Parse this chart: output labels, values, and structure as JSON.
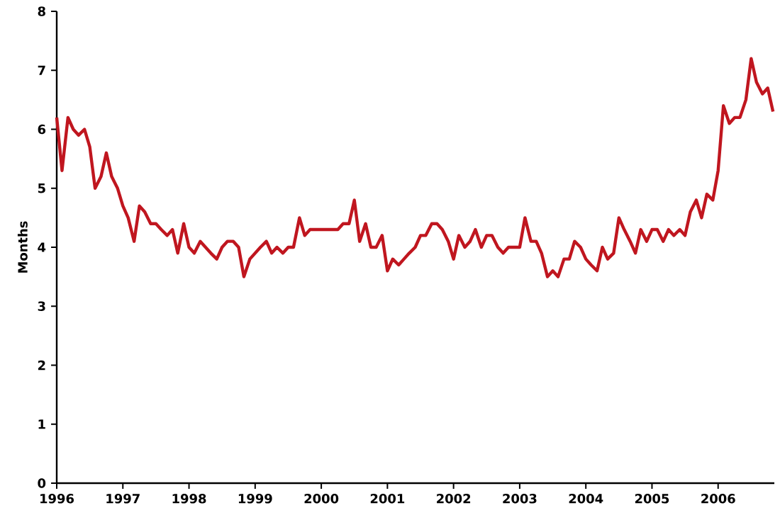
{
  "chart_data": {
    "type": "line",
    "ylabel": "Months",
    "x": [
      1996.0,
      1996.08,
      1996.17,
      1996.25,
      1996.33,
      1996.42,
      1996.5,
      1996.58,
      1996.67,
      1996.75,
      1996.83,
      1996.92,
      1997.0,
      1997.08,
      1997.17,
      1997.25,
      1997.33,
      1997.42,
      1997.5,
      1997.58,
      1997.67,
      1997.75,
      1997.83,
      1997.92,
      1998.0,
      1998.08,
      1998.17,
      1998.25,
      1998.33,
      1998.42,
      1998.5,
      1998.58,
      1998.67,
      1998.75,
      1998.83,
      1998.92,
      1999.0,
      1999.08,
      1999.17,
      1999.25,
      1999.33,
      1999.42,
      1999.5,
      1999.58,
      1999.67,
      1999.75,
      1999.83,
      1999.92,
      2000.0,
      2000.08,
      2000.17,
      2000.25,
      2000.33,
      2000.42,
      2000.5,
      2000.58,
      2000.67,
      2000.75,
      2000.83,
      2000.92,
      2001.0,
      2001.08,
      2001.17,
      2001.25,
      2001.33,
      2001.42,
      2001.5,
      2001.58,
      2001.67,
      2001.75,
      2001.83,
      2001.92,
      2002.0,
      2002.08,
      2002.17,
      2002.25,
      2002.33,
      2002.42,
      2002.5,
      2002.58,
      2002.67,
      2002.75,
      2002.83,
      2002.92,
      2003.0,
      2003.08,
      2003.17,
      2003.25,
      2003.33,
      2003.42,
      2003.5,
      2003.58,
      2003.67,
      2003.75,
      2003.83,
      2003.92,
      2004.0,
      2004.08,
      2004.17,
      2004.25,
      2004.33,
      2004.42,
      2004.5,
      2004.58,
      2004.67,
      2004.75,
      2004.83,
      2004.92,
      2005.0,
      2005.08,
      2005.17,
      2005.25,
      2005.33,
      2005.42,
      2005.5,
      2005.58,
      2005.67,
      2005.75,
      2005.83,
      2005.92,
      2006.0,
      2006.08,
      2006.17,
      2006.25,
      2006.33,
      2006.42,
      2006.5,
      2006.58,
      2006.67,
      2006.75,
      2006.83
    ],
    "series": [
      {
        "color": "#c0161f",
        "values": [
          6.2,
          5.3,
          6.2,
          6.0,
          5.9,
          6.0,
          5.7,
          5.0,
          5.2,
          5.6,
          5.2,
          5.0,
          4.7,
          4.5,
          4.1,
          4.7,
          4.6,
          4.4,
          4.4,
          4.3,
          4.2,
          4.3,
          3.9,
          4.4,
          4.0,
          3.9,
          4.1,
          4.0,
          3.9,
          3.8,
          4.0,
          4.1,
          4.1,
          4.0,
          3.5,
          3.8,
          3.9,
          4.0,
          4.1,
          3.9,
          4.0,
          3.9,
          4.0,
          4.0,
          4.5,
          4.2,
          4.3,
          4.3,
          4.3,
          4.3,
          4.3,
          4.3,
          4.4,
          4.4,
          4.8,
          4.1,
          4.4,
          4.0,
          4.0,
          4.2,
          3.6,
          3.8,
          3.7,
          3.8,
          3.9,
          4.0,
          4.2,
          4.2,
          4.4,
          4.4,
          4.3,
          4.1,
          3.8,
          4.2,
          4.0,
          4.1,
          4.3,
          4.0,
          4.2,
          4.2,
          4.0,
          3.9,
          4.0,
          4.0,
          4.0,
          4.5,
          4.1,
          4.1,
          3.9,
          3.5,
          3.6,
          3.5,
          3.8,
          3.8,
          4.1,
          4.0,
          3.8,
          3.7,
          3.6,
          4.0,
          3.8,
          3.9,
          4.5,
          4.3,
          4.1,
          3.9,
          4.3,
          4.1,
          4.3,
          4.3,
          4.1,
          4.3,
          4.2,
          4.3,
          4.2,
          4.6,
          4.8,
          4.5,
          4.9,
          4.8,
          5.3,
          6.4,
          6.1,
          6.2,
          6.2,
          6.5,
          7.2,
          6.8,
          6.6,
          6.7,
          6.3
        ]
      }
    ],
    "xlim": [
      1996,
      2006.85
    ],
    "xticks": [
      1996,
      1997,
      1998,
      1999,
      2000,
      2001,
      2002,
      2003,
      2004,
      2005,
      2006
    ],
    "ylim": [
      0,
      8
    ],
    "yticks": [
      0,
      1,
      2,
      3,
      4,
      5,
      6,
      7,
      8
    ],
    "grid": false,
    "marker": "none",
    "line_style": "solid"
  }
}
